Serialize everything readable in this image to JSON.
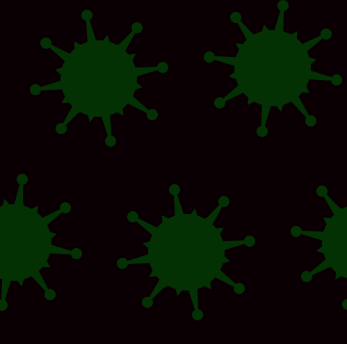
{
  "background_color": "#0a0003",
  "virus_color": "#033103",
  "virus_icon": "virus-icon",
  "virus_count": 5
}
